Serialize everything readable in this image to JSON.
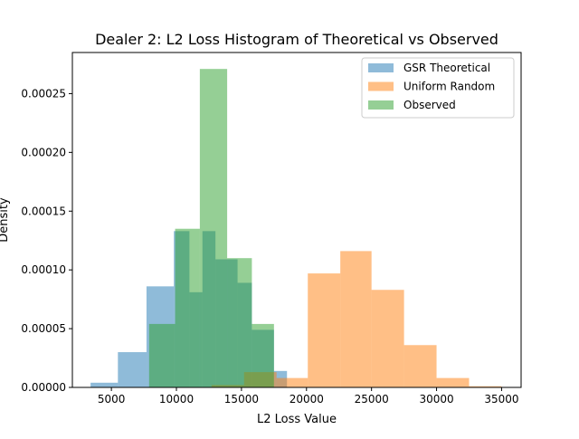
{
  "chart_data": {
    "type": "bar",
    "title": "Dealer 2: L2 Loss Histogram of Theoretical vs Observed",
    "xlabel": "L2 Loss Value",
    "ylabel": "Density",
    "xlim": [
      2000,
      36500
    ],
    "ylim": [
      0,
      0.000285
    ],
    "xticks": [
      {
        "value": 5000,
        "label": "5000"
      },
      {
        "value": 10000,
        "label": "10000"
      },
      {
        "value": 15000,
        "label": "15000"
      },
      {
        "value": 20000,
        "label": "20000"
      },
      {
        "value": 25000,
        "label": "25000"
      },
      {
        "value": 30000,
        "label": "30000"
      },
      {
        "value": 35000,
        "label": "35000"
      }
    ],
    "yticks": [
      {
        "value": 0,
        "label": "0.00000"
      },
      {
        "value": 5e-05,
        "label": "0.00005"
      },
      {
        "value": 0.0001,
        "label": "0.00010"
      },
      {
        "value": 0.00015,
        "label": "0.00015"
      },
      {
        "value": 0.0002,
        "label": "0.00020"
      },
      {
        "value": 0.00025,
        "label": "0.00025"
      }
    ],
    "grid": false,
    "legend_position": "top-right",
    "series": [
      {
        "name": "GSR Theoretical",
        "color": "#1f77b4",
        "alpha": 0.5,
        "bin_edges": [
          3400,
          5500,
          7700,
          9800,
          11000,
          12000,
          13000,
          14700,
          15800,
          17500,
          18500
        ],
        "values": [
          4e-06,
          3e-05,
          8.6e-05,
          0.000133,
          8.1e-05,
          0.000133,
          0.000109,
          8.9e-05,
          4.9e-05,
          1.4e-05
        ]
      },
      {
        "name": "Uniform Random",
        "color": "#ff7f0e",
        "alpha": 0.5,
        "bin_edges": [
          12700,
          15200,
          17700,
          20100,
          22600,
          25000,
          27500,
          30000,
          32500,
          35000
        ],
        "values": [
          2e-06,
          1.3e-05,
          8e-06,
          9.7e-05,
          0.000116,
          8.3e-05,
          3.6e-05,
          8e-06,
          1e-06
        ]
      },
      {
        "name": "Observed",
        "color": "#2ca02c",
        "alpha": 0.5,
        "bin_edges": [
          7900,
          9900,
          11800,
          13900,
          15800,
          17500
        ],
        "values": [
          5.4e-05,
          0.000135,
          0.000271,
          0.00011,
          5.4e-05
        ]
      }
    ]
  }
}
